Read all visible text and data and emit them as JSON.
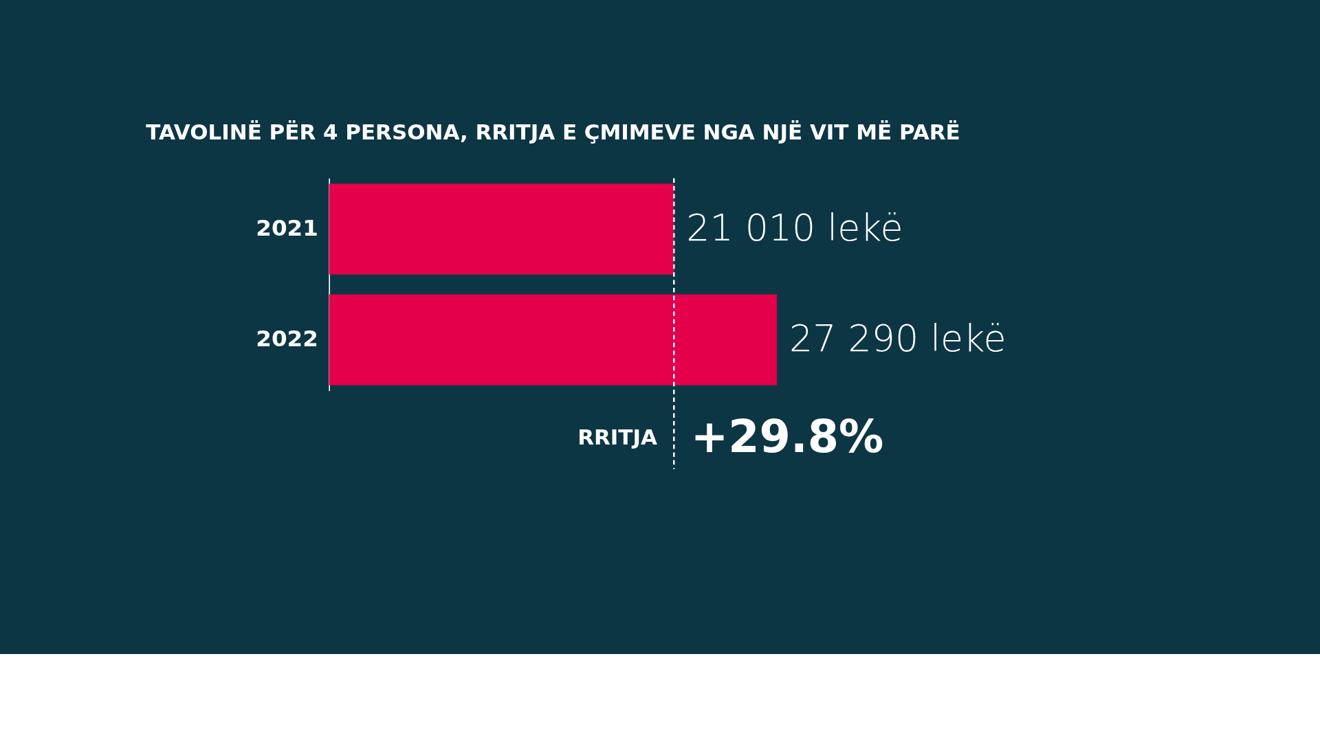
{
  "chart_data": {
    "type": "bar",
    "orientation": "horizontal",
    "title": "TAVOLINË PËR 4 PERSONA, RRITJA E ÇMIMEVE NGA NJË VIT MË PARË",
    "categories": [
      "2021",
      "2022"
    ],
    "values": [
      21010,
      27290
    ],
    "value_labels": [
      "21 010 lekë",
      "27 290 lekë"
    ],
    "color": "#e4004b",
    "ref_lines": [
      {
        "axis": "x",
        "value": 21010,
        "color": "#ffffff",
        "line_style": "dashed"
      }
    ],
    "annotations": [
      "RRITJA",
      "+29.8%"
    ],
    "tick_labels": "y"
  }
}
